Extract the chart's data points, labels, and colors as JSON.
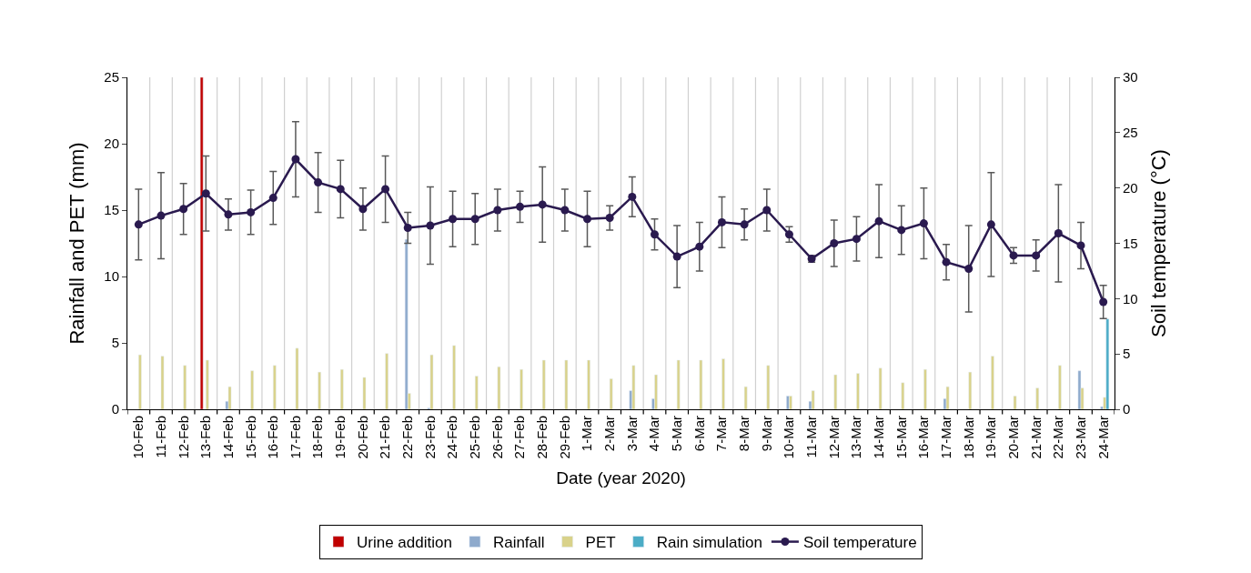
{
  "chart_data": {
    "type": "bar",
    "xlabel": "Date (year 2020)",
    "ylabel": "Rainfall and PET (mm)",
    "y2label": "Soil temperature (°C)",
    "categories": [
      "10-Feb",
      "11-Feb",
      "12-Feb",
      "13-Feb",
      "14-Feb",
      "15-Feb",
      "16-Feb",
      "17-Feb",
      "18-Feb",
      "19-Feb",
      "20-Feb",
      "21-Feb",
      "22-Feb",
      "23-Feb",
      "24-Feb",
      "25-Feb",
      "26-Feb",
      "27-Feb",
      "28-Feb",
      "29-Feb",
      "1-Mar",
      "2-Mar",
      "3-Mar",
      "4-Mar",
      "5-Mar",
      "6-Mar",
      "7-Mar",
      "8-Mar",
      "9-Mar",
      "10-Mar",
      "11-Mar",
      "12-Mar",
      "13-Mar",
      "14-Mar",
      "15-Mar",
      "16-Mar",
      "17-Mar",
      "18-Mar",
      "19-Mar",
      "20-Mar",
      "21-Mar",
      "22-Mar",
      "23-Mar",
      "24-Mar"
    ],
    "series": [
      {
        "name": "Urine addition",
        "color": "#c00000",
        "values": [
          null,
          null,
          null,
          25,
          null,
          null,
          null,
          null,
          null,
          null,
          null,
          null,
          null,
          null,
          null,
          null,
          null,
          null,
          null,
          null,
          null,
          null,
          null,
          null,
          null,
          null,
          null,
          null,
          null,
          null,
          null,
          null,
          null,
          null,
          null,
          null,
          null,
          null,
          null,
          null,
          null,
          null,
          null,
          null
        ]
      },
      {
        "name": "Rainfall",
        "color": "#8eaacc",
        "values": [
          null,
          null,
          null,
          null,
          0.6,
          null,
          null,
          null,
          null,
          null,
          null,
          null,
          12.8,
          0.1,
          null,
          null,
          null,
          null,
          null,
          null,
          null,
          null,
          1.4,
          0.8,
          null,
          null,
          null,
          null,
          null,
          1.0,
          0.6,
          null,
          null,
          null,
          null,
          null,
          0.8,
          null,
          null,
          null,
          null,
          null,
          2.9,
          0.2
        ]
      },
      {
        "name": "PET",
        "color": "#d9d28a",
        "values": [
          4.1,
          4.0,
          3.3,
          3.7,
          1.7,
          2.9,
          3.3,
          4.6,
          2.8,
          3.0,
          2.4,
          4.2,
          1.2,
          4.1,
          4.8,
          2.5,
          3.2,
          3.0,
          3.7,
          3.7,
          3.7,
          2.3,
          3.3,
          2.6,
          3.7,
          3.7,
          3.8,
          1.7,
          3.3,
          1.0,
          1.4,
          2.6,
          2.7,
          3.1,
          2.0,
          3.0,
          1.7,
          2.8,
          4.0,
          1.0,
          1.6,
          3.3,
          1.6,
          0.9
        ]
      },
      {
        "name": "Rain simulation",
        "color": "#4bacc6",
        "values": [
          null,
          null,
          null,
          null,
          null,
          null,
          null,
          null,
          null,
          null,
          null,
          null,
          null,
          null,
          null,
          null,
          null,
          null,
          null,
          null,
          null,
          null,
          null,
          null,
          null,
          null,
          null,
          null,
          null,
          null,
          null,
          null,
          null,
          null,
          null,
          null,
          null,
          null,
          null,
          null,
          null,
          null,
          null,
          6.8
        ]
      },
      {
        "name": "Soil temperature",
        "type": "line",
        "axis": "y2",
        "color": "#2a1a4f",
        "marker": "circle",
        "values": [
          16.7,
          17.5,
          18.1,
          19.5,
          17.6,
          17.8,
          19.1,
          22.6,
          20.5,
          19.9,
          18.1,
          19.9,
          16.4,
          16.6,
          17.2,
          17.2,
          18.0,
          18.3,
          18.5,
          18.0,
          17.2,
          17.3,
          19.2,
          15.8,
          13.8,
          14.7,
          16.9,
          16.7,
          18.0,
          15.8,
          13.6,
          15.0,
          15.4,
          17.0,
          16.2,
          16.8,
          13.3,
          12.7,
          16.7,
          13.9,
          13.9,
          15.9,
          14.8,
          9.7
        ],
        "errors": [
          3.2,
          3.9,
          2.3,
          3.4,
          1.4,
          2.0,
          2.4,
          3.4,
          2.7,
          2.6,
          1.9,
          3.0,
          1.4,
          3.5,
          2.5,
          2.3,
          1.9,
          1.4,
          3.4,
          1.9,
          2.5,
          1.1,
          1.8,
          1.4,
          2.8,
          2.2,
          2.3,
          1.4,
          1.9,
          0.7,
          0.3,
          2.1,
          2.0,
          3.3,
          2.2,
          3.2,
          1.6,
          3.9,
          4.7,
          0.7,
          1.4,
          4.4,
          2.1,
          1.5
        ]
      }
    ],
    "ylim": [
      0,
      25
    ],
    "yticks": [
      0,
      5,
      10,
      15,
      20,
      25
    ],
    "y2lim": [
      0,
      30
    ],
    "y2ticks": [
      0,
      5,
      10,
      15,
      20,
      25,
      30
    ],
    "grid": "x",
    "legend": "bottom"
  }
}
